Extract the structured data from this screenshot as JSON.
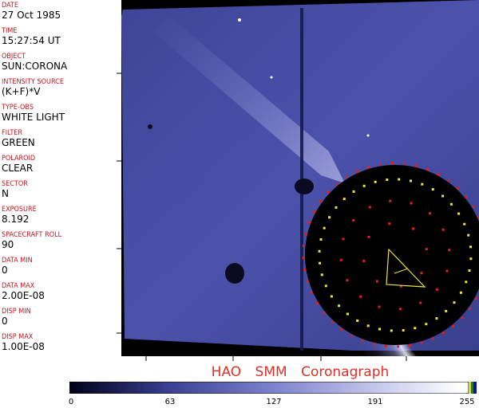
{
  "header_fields": [
    {
      "label": "DATE",
      "value": "27 Oct 1985"
    },
    {
      "label": "TIME",
      "value": "15:27:54 UT"
    },
    {
      "label": "OBJECT",
      "value": "SUN:CORONA"
    },
    {
      "label": "INTENSITY SOURCE",
      "value": "(K+F)*V"
    },
    {
      "label": "TYPE-OBS",
      "value": "WHITE LIGHT"
    },
    {
      "label": "FILTER",
      "value": "GREEN"
    },
    {
      "label": "POLAROID",
      "value": "CLEAR"
    },
    {
      "label": "SECTOR",
      "value": "N"
    },
    {
      "label": "EXPOSURE",
      "value": "8.192"
    },
    {
      "label": "SPACECRAFT ROLL",
      "value": "90"
    },
    {
      "label": "DATA MIN",
      "value": "0"
    },
    {
      "label": "DATA MAX",
      "value": "2.00E-08"
    },
    {
      "label": "DISP MIN",
      "value": "0"
    },
    {
      "label": "DISP MAX",
      "value": "1.00E-08"
    }
  ],
  "title": "HAO  SMM Coronagraph",
  "colorbar": {
    "labels": [
      "0",
      "63",
      "127",
      "191",
      "255"
    ],
    "colors": {
      "dark": "#000018",
      "mid": "#5a5fb0",
      "light": "#f4f4fb"
    }
  },
  "colors": {
    "label_red": "#c8141e",
    "title_red": "#e03028",
    "corona_blue": "#4a4ea8",
    "occulter": "#000000",
    "grid_red": "#e02020",
    "grid_yellow": "#f0e040"
  }
}
